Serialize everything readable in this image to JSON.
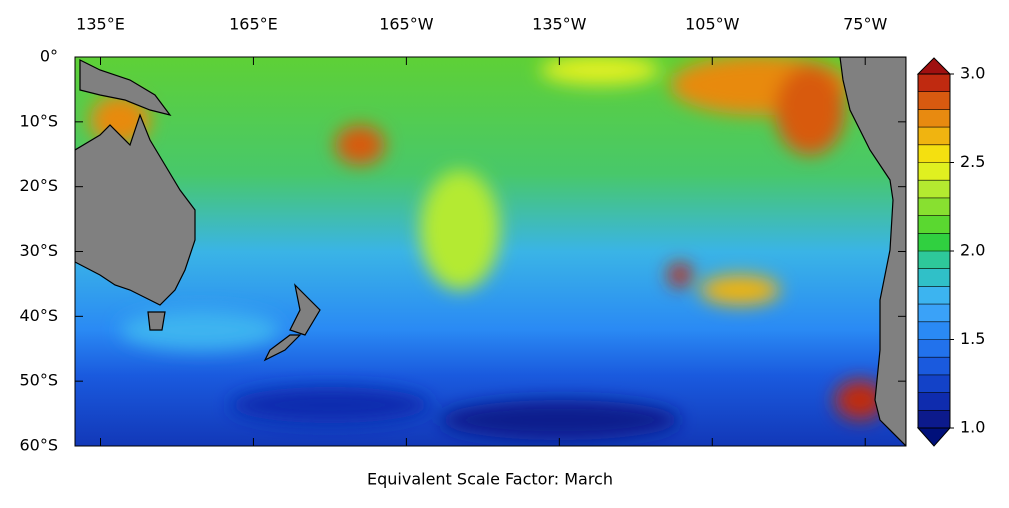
{
  "map": {
    "title": "Equivalent Scale Factor: March",
    "lonlim": [
      130,
      293
    ],
    "latlim": [
      -60,
      0
    ],
    "lonticks": [
      {
        "value": 135,
        "label": "135°E"
      },
      {
        "value": 165,
        "label": "165°E"
      },
      {
        "value": 195,
        "label": "165°W"
      },
      {
        "value": 225,
        "label": "135°W"
      },
      {
        "value": 255,
        "label": "105°W"
      },
      {
        "value": 285,
        "label": "75°W"
      }
    ],
    "latticks": [
      {
        "value": 0,
        "label": "0°"
      },
      {
        "value": -10,
        "label": "10°S"
      },
      {
        "value": -20,
        "label": "20°S"
      },
      {
        "value": -30,
        "label": "30°S"
      },
      {
        "value": -40,
        "label": "40°S"
      },
      {
        "value": -50,
        "label": "50°S"
      },
      {
        "value": -60,
        "label": "60°S"
      }
    ],
    "colorbar": {
      "range": [
        1,
        3
      ],
      "ticks": [
        {
          "value": 1,
          "label": "1.0"
        },
        {
          "value": 1.5,
          "label": "1.5"
        },
        {
          "value": 2,
          "label": "2.0"
        },
        {
          "value": 2.5,
          "label": "2.5"
        },
        {
          "value": 3,
          "label": "3.0"
        }
      ],
      "colors": [
        "#0c1a8c",
        "#0f2cae",
        "#1342c8",
        "#1a5ade",
        "#2272ec",
        "#2a8af4",
        "#3aa2f8",
        "#3cb4f0",
        "#30c0c8",
        "#2ec89a",
        "#30d040",
        "#5ad830",
        "#88e030",
        "#b4ea30",
        "#e0f020",
        "#f4e010",
        "#f0b410",
        "#e88a10",
        "#d85a10",
        "#c02a10"
      ],
      "under_color": "#00107a",
      "over_color": "#a01010"
    }
  }
}
